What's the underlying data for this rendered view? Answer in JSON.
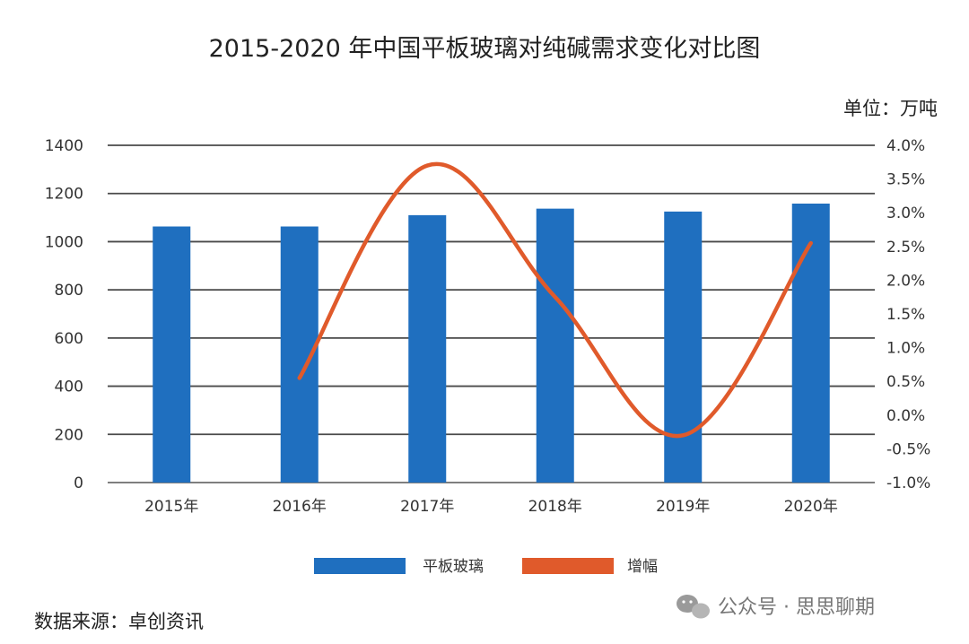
{
  "chart_data": {
    "type": "bar",
    "title": "2015-2020 年中国平板玻璃对纯碱需求变化对比图",
    "unit_label": "单位：万吨",
    "categories": [
      "2015年",
      "2016年",
      "2017年",
      "2018年",
      "2019年",
      "2020年"
    ],
    "series": [
      {
        "name": "平板玻璃",
        "type": "bar",
        "axis": "left",
        "color": "#1f6fbf",
        "values": [
          1063,
          1063,
          1110,
          1137,
          1125,
          1158
        ]
      },
      {
        "name": "增幅",
        "type": "line",
        "axis": "right",
        "unit": "%",
        "color": "#e05a2b",
        "values": [
          null,
          0.55,
          3.7,
          1.75,
          -0.3,
          2.55
        ]
      }
    ],
    "y_left": {
      "ylim": [
        0,
        1400
      ],
      "ticks": [
        0,
        200,
        400,
        600,
        800,
        1000,
        1200,
        1400
      ],
      "tick_labels": [
        "0",
        "200",
        "400",
        "600",
        "800",
        "1000",
        "1200",
        "1400"
      ]
    },
    "y_right": {
      "ylim": [
        -1.0,
        4.0
      ],
      "ticks": [
        -1.0,
        -0.5,
        0.0,
        0.5,
        1.0,
        1.5,
        2.0,
        2.5,
        3.0,
        3.5,
        4.0
      ],
      "tick_labels": [
        "-1.0%",
        "-0.5%",
        "0.0%",
        "0.5%",
        "1.0%",
        "1.5%",
        "2.0%",
        "2.5%",
        "3.0%",
        "3.5%",
        "4.0%"
      ]
    },
    "grid": true,
    "legend_position": "bottom"
  },
  "footer": {
    "source": "数据来源：卓创资讯",
    "watermark": "公众号 · 思思聊期",
    "watermark_icon": "wechat-icon"
  }
}
